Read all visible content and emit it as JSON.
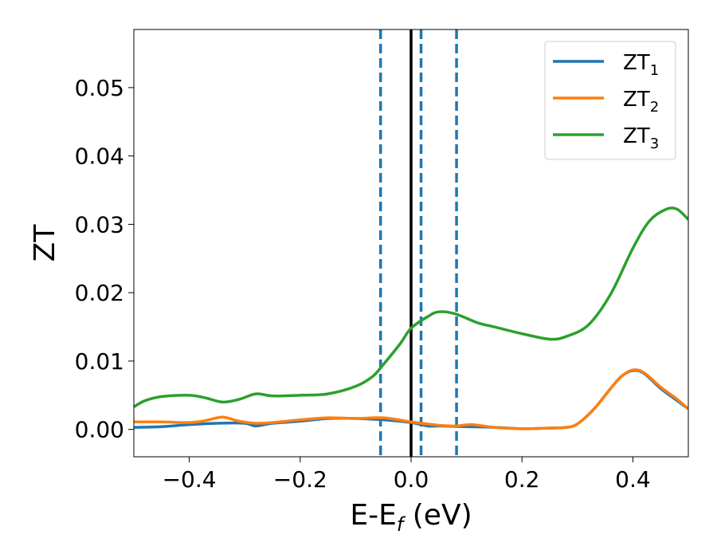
{
  "chart_data": {
    "type": "line",
    "title": "",
    "xlabel": "E-E",
    "xlabel_subscript": "f",
    "xlabel_suffix": " (eV)",
    "ylabel": "ZT",
    "xlim": [
      -0.5,
      0.5
    ],
    "ylim": [
      -0.004,
      0.0585
    ],
    "xticks": [
      -0.4,
      -0.2,
      0.0,
      0.2,
      0.4
    ],
    "xtick_labels": [
      "−0.4",
      "−0.2",
      "0.0",
      "0.2",
      "0.4"
    ],
    "yticks": [
      0.0,
      0.01,
      0.02,
      0.03,
      0.04,
      0.05
    ],
    "ytick_labels": [
      "0.00",
      "0.01",
      "0.02",
      "0.03",
      "0.04",
      "0.05"
    ],
    "grid": false,
    "legend_position": "top-right",
    "series": [
      {
        "name": "ZT",
        "name_subscript": "1",
        "color": "#1f77b4",
        "x": [
          -0.5,
          -0.45,
          -0.4,
          -0.35,
          -0.3,
          -0.28,
          -0.25,
          -0.2,
          -0.15,
          -0.1,
          -0.05,
          0.0,
          0.03,
          0.05,
          0.1,
          0.15,
          0.2,
          0.25,
          0.28,
          0.3,
          0.33,
          0.36,
          0.38,
          0.4,
          0.42,
          0.45,
          0.48,
          0.5
        ],
        "y": [
          0.0003,
          0.0004,
          0.0007,
          0.0009,
          0.0009,
          0.0005,
          0.0009,
          0.0012,
          0.0016,
          0.0016,
          0.0014,
          0.001,
          0.0005,
          0.0005,
          0.0004,
          0.0003,
          0.0001,
          0.0002,
          0.0003,
          0.0008,
          0.003,
          0.006,
          0.0078,
          0.0086,
          0.0082,
          0.006,
          0.0042,
          0.003
        ]
      },
      {
        "name": "ZT",
        "name_subscript": "2",
        "color": "#ff7f0e",
        "x": [
          -0.5,
          -0.45,
          -0.4,
          -0.37,
          -0.34,
          -0.31,
          -0.28,
          -0.25,
          -0.2,
          -0.15,
          -0.1,
          -0.05,
          0.0,
          0.05,
          0.08,
          0.11,
          0.15,
          0.2,
          0.25,
          0.28,
          0.3,
          0.33,
          0.36,
          0.38,
          0.4,
          0.42,
          0.45,
          0.48,
          0.5
        ],
        "y": [
          0.0011,
          0.0011,
          0.001,
          0.0013,
          0.0018,
          0.0012,
          0.0009,
          0.001,
          0.0014,
          0.0017,
          0.0016,
          0.0017,
          0.0011,
          0.0006,
          0.0005,
          0.0007,
          0.0003,
          0.0001,
          0.0002,
          0.0003,
          0.0008,
          0.003,
          0.006,
          0.0078,
          0.0087,
          0.0083,
          0.0062,
          0.0044,
          0.003
        ]
      },
      {
        "name": "ZT",
        "name_subscript": "3",
        "color": "#2ca02c",
        "x": [
          -0.5,
          -0.48,
          -0.45,
          -0.4,
          -0.37,
          -0.34,
          -0.31,
          -0.28,
          -0.25,
          -0.2,
          -0.15,
          -0.1,
          -0.07,
          -0.05,
          -0.02,
          0.0,
          0.03,
          0.05,
          0.08,
          0.12,
          0.15,
          0.2,
          0.25,
          0.28,
          0.32,
          0.36,
          0.4,
          0.43,
          0.46,
          0.48,
          0.5
        ],
        "y": [
          0.0033,
          0.0042,
          0.0048,
          0.005,
          0.0046,
          0.004,
          0.0044,
          0.0052,
          0.0049,
          0.005,
          0.0052,
          0.0063,
          0.0077,
          0.0095,
          0.0125,
          0.0148,
          0.0165,
          0.0172,
          0.0169,
          0.0156,
          0.015,
          0.014,
          0.0132,
          0.0136,
          0.0153,
          0.0198,
          0.0265,
          0.0305,
          0.0322,
          0.0322,
          0.0307
        ]
      }
    ],
    "vlines": [
      {
        "x": 0.0,
        "color": "#000000",
        "style": "solid"
      },
      {
        "x": -0.055,
        "color": "#1f77b4",
        "style": "dashed"
      },
      {
        "x": 0.018,
        "color": "#1f77b4",
        "style": "dashed"
      },
      {
        "x": 0.082,
        "color": "#1f77b4",
        "style": "dashed"
      }
    ]
  }
}
